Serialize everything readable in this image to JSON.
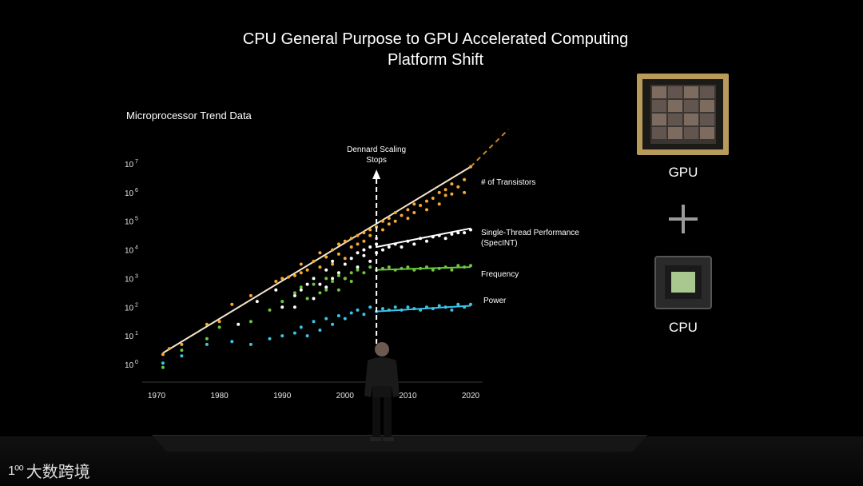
{
  "slide": {
    "title_line1": "CPU General Purpose to GPU Accelerated Computing",
    "title_line2": "Platform Shift"
  },
  "chart_heading": "Microprocessor Trend Data",
  "chips": {
    "gpu_label": "GPU",
    "cpu_label": "CPU"
  },
  "watermark": {
    "logo": "1⁰⁰",
    "text": "大数跨境"
  },
  "colors": {
    "transistors": "#f5a832",
    "single_thread": "#ffffff",
    "frequency": "#6cc83c",
    "power": "#3cc4e8",
    "trend_line": "#f4e6cc"
  },
  "chart_data": {
    "type": "scatter",
    "title": "Microprocessor Trend Data",
    "xlabel": "",
    "ylabel": "",
    "x_ticks": [
      1970,
      1980,
      1990,
      2000,
      2010,
      2020
    ],
    "y_ticks": [
      {
        "base": "10",
        "exp": "0"
      },
      {
        "base": "10",
        "exp": "1"
      },
      {
        "base": "10",
        "exp": "2"
      },
      {
        "base": "10",
        "exp": "3"
      },
      {
        "base": "10",
        "exp": "4"
      },
      {
        "base": "10",
        "exp": "5"
      },
      {
        "base": "10",
        "exp": "6"
      },
      {
        "base": "10",
        "exp": "7"
      }
    ],
    "y_scale": "log",
    "xlim": [
      1969,
      2021
    ],
    "ylim_log10": [
      0,
      7
    ],
    "annotation": {
      "year": 2005,
      "label_line1": "Dennard Scaling",
      "label_line2": "Stops"
    },
    "series": [
      {
        "name": "# of Transistors",
        "key": "transistors",
        "points": [
          [
            1971,
            0.35
          ],
          [
            1972,
            0.55
          ],
          [
            1974,
            0.7
          ],
          [
            1978,
            1.4
          ],
          [
            1980,
            1.5
          ],
          [
            1982,
            2.1
          ],
          [
            1985,
            2.4
          ],
          [
            1989,
            2.9
          ],
          [
            1990,
            3.0
          ],
          [
            1991,
            3.05
          ],
          [
            1992,
            3.1
          ],
          [
            1993,
            3.2
          ],
          [
            1993,
            3.5
          ],
          [
            1994,
            3.3
          ],
          [
            1995,
            3.6
          ],
          [
            1996,
            3.4
          ],
          [
            1996,
            3.9
          ],
          [
            1997,
            3.75
          ],
          [
            1998,
            3.5
          ],
          [
            1998,
            4.0
          ],
          [
            1999,
            3.85
          ],
          [
            1999,
            4.2
          ],
          [
            2000,
            3.7
          ],
          [
            2000,
            4.3
          ],
          [
            2001,
            4.1
          ],
          [
            2001,
            4.4
          ],
          [
            2002,
            4.5
          ],
          [
            2002,
            4.2
          ],
          [
            2003,
            4.3
          ],
          [
            2003,
            4.6
          ],
          [
            2004,
            4.5
          ],
          [
            2004,
            4.7
          ],
          [
            2005,
            4.8
          ],
          [
            2005,
            4.4
          ],
          [
            2006,
            5.0
          ],
          [
            2006,
            4.7
          ],
          [
            2007,
            5.1
          ],
          [
            2007,
            4.9
          ],
          [
            2008,
            5.3
          ],
          [
            2008,
            5.0
          ],
          [
            2009,
            5.2
          ],
          [
            2010,
            5.4
          ],
          [
            2010,
            5.1
          ],
          [
            2011,
            5.6
          ],
          [
            2011,
            5.3
          ],
          [
            2012,
            5.55
          ],
          [
            2013,
            5.7
          ],
          [
            2013,
            5.4
          ],
          [
            2014,
            5.8
          ],
          [
            2015,
            6.0
          ],
          [
            2015,
            5.6
          ],
          [
            2016,
            6.1
          ],
          [
            2016,
            5.9
          ],
          [
            2017,
            6.3
          ],
          [
            2017,
            5.95
          ],
          [
            2018,
            6.2
          ],
          [
            2019,
            6.45
          ],
          [
            2019,
            6.0
          ],
          [
            2020,
            6.9
          ]
        ],
        "trend": [
          [
            1971,
            0.4
          ],
          [
            2020,
            6.9
          ]
        ],
        "trend_extension": [
          [
            2020,
            6.9
          ],
          [
            2026,
            8.2
          ]
        ]
      },
      {
        "name": "Single-Thread Performance",
        "name_line2": "(SpecINT)",
        "key": "single_thread",
        "points": [
          [
            1983,
            1.4
          ],
          [
            1986,
            2.2
          ],
          [
            1989,
            2.6
          ],
          [
            1990,
            2.0
          ],
          [
            1992,
            2.0
          ],
          [
            1992,
            2.4
          ],
          [
            1993,
            2.6
          ],
          [
            1994,
            2.8
          ],
          [
            1995,
            2.3
          ],
          [
            1995,
            3.0
          ],
          [
            1996,
            2.8
          ],
          [
            1997,
            3.3
          ],
          [
            1997,
            2.7
          ],
          [
            1998,
            3.0
          ],
          [
            1998,
            3.6
          ],
          [
            1999,
            3.2
          ],
          [
            2000,
            3.5
          ],
          [
            2000,
            3.0
          ],
          [
            2001,
            3.7
          ],
          [
            2002,
            3.4
          ],
          [
            2002,
            3.9
          ],
          [
            2003,
            3.8
          ],
          [
            2003,
            4.0
          ],
          [
            2004,
            3.6
          ],
          [
            2004,
            4.1
          ],
          [
            2005,
            3.9
          ],
          [
            2005,
            4.2
          ],
          [
            2006,
            4.0
          ],
          [
            2007,
            4.1
          ],
          [
            2008,
            4.2
          ],
          [
            2009,
            4.1
          ],
          [
            2010,
            4.3
          ],
          [
            2011,
            4.2
          ],
          [
            2012,
            4.4
          ],
          [
            2013,
            4.3
          ],
          [
            2014,
            4.45
          ],
          [
            2015,
            4.5
          ],
          [
            2016,
            4.4
          ],
          [
            2017,
            4.55
          ],
          [
            2018,
            4.6
          ],
          [
            2019,
            4.6
          ],
          [
            2020,
            4.7
          ]
        ],
        "trend": [
          [
            2005,
            4.1
          ],
          [
            2020,
            4.75
          ]
        ]
      },
      {
        "name": "Frequency",
        "key": "frequency",
        "points": [
          [
            1971,
            -0.1
          ],
          [
            1974,
            0.5
          ],
          [
            1978,
            0.9
          ],
          [
            1980,
            1.3
          ],
          [
            1985,
            1.5
          ],
          [
            1988,
            1.9
          ],
          [
            1990,
            2.2
          ],
          [
            1992,
            2.5
          ],
          [
            1993,
            2.7
          ],
          [
            1994,
            2.3
          ],
          [
            1995,
            2.8
          ],
          [
            1996,
            2.5
          ],
          [
            1997,
            2.6
          ],
          [
            1997,
            3.0
          ],
          [
            1998,
            2.9
          ],
          [
            1999,
            2.6
          ],
          [
            1999,
            3.1
          ],
          [
            2000,
            3.0
          ],
          [
            2001,
            2.9
          ],
          [
            2001,
            3.2
          ],
          [
            2002,
            3.3
          ],
          [
            2003,
            3.2
          ],
          [
            2004,
            3.4
          ],
          [
            2005,
            3.3
          ],
          [
            2006,
            3.35
          ],
          [
            2007,
            3.4
          ],
          [
            2008,
            3.3
          ],
          [
            2009,
            3.35
          ],
          [
            2010,
            3.4
          ],
          [
            2011,
            3.3
          ],
          [
            2012,
            3.35
          ],
          [
            2013,
            3.4
          ],
          [
            2014,
            3.3
          ],
          [
            2015,
            3.35
          ],
          [
            2016,
            3.4
          ],
          [
            2017,
            3.3
          ],
          [
            2018,
            3.45
          ],
          [
            2019,
            3.4
          ],
          [
            2020,
            3.45
          ]
        ],
        "trend": [
          [
            2005,
            3.3
          ],
          [
            2020,
            3.4
          ]
        ]
      },
      {
        "name": "Power",
        "key": "power",
        "points": [
          [
            1971,
            0.05
          ],
          [
            1974,
            0.3
          ],
          [
            1978,
            0.7
          ],
          [
            1982,
            0.8
          ],
          [
            1985,
            0.7
          ],
          [
            1988,
            0.9
          ],
          [
            1990,
            1.0
          ],
          [
            1992,
            1.1
          ],
          [
            1993,
            1.3
          ],
          [
            1994,
            1.0
          ],
          [
            1995,
            1.5
          ],
          [
            1996,
            1.2
          ],
          [
            1997,
            1.6
          ],
          [
            1998,
            1.4
          ],
          [
            1999,
            1.7
          ],
          [
            2000,
            1.6
          ],
          [
            2001,
            1.8
          ],
          [
            2002,
            1.9
          ],
          [
            2003,
            1.75
          ],
          [
            2004,
            2.0
          ],
          [
            2005,
            1.85
          ],
          [
            2006,
            1.95
          ],
          [
            2007,
            1.9
          ],
          [
            2008,
            2.0
          ],
          [
            2009,
            1.9
          ],
          [
            2010,
            2.0
          ],
          [
            2011,
            1.95
          ],
          [
            2012,
            1.9
          ],
          [
            2013,
            2.0
          ],
          [
            2014,
            1.95
          ],
          [
            2015,
            2.05
          ],
          [
            2016,
            2.0
          ],
          [
            2017,
            1.9
          ],
          [
            2018,
            2.1
          ],
          [
            2019,
            2.0
          ],
          [
            2020,
            2.1
          ]
        ],
        "trend": [
          [
            2005,
            1.85
          ],
          [
            2020,
            2.05
          ]
        ]
      }
    ]
  }
}
